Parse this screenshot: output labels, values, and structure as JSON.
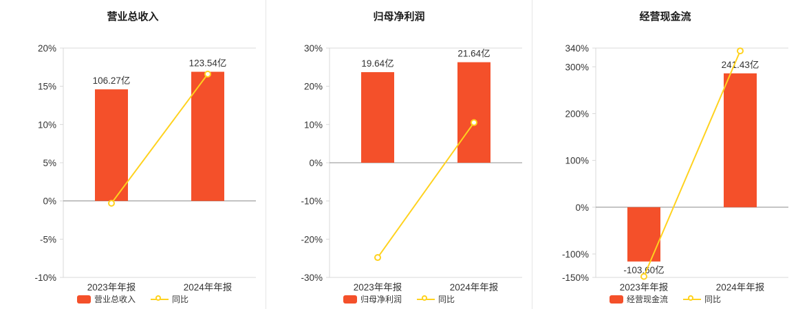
{
  "colors": {
    "bar": "#f4502a",
    "line": "#ffd21e",
    "axis_text": "#333333",
    "zero_line": "#8c8c8c",
    "grid_line": "#d8d8d8",
    "divider": "#e5e5e5",
    "title_text": "#1a1a1a",
    "marker_fill": "#ffffff"
  },
  "chart_data": [
    {
      "type": "bar+line",
      "title": "营业总收入",
      "categories": [
        "2023年年报",
        "2024年年报"
      ],
      "ylim": [
        -10,
        20
      ],
      "y_ticks": [
        {
          "value": 20,
          "label": "20%"
        },
        {
          "value": 15,
          "label": "15%"
        },
        {
          "value": 10,
          "label": "10%"
        },
        {
          "value": 5,
          "label": "5%"
        },
        {
          "value": 0,
          "label": "0%"
        },
        {
          "value": -5,
          "label": "-5%"
        },
        {
          "value": -10,
          "label": "-10%"
        }
      ],
      "bars": {
        "name": "营业总收入",
        "unit": "亿",
        "values": [
          {
            "amount": 106.27,
            "label": "106.27亿",
            "axis": 14.6
          },
          {
            "amount": 123.54,
            "label": "123.54亿",
            "axis": 16.9
          }
        ]
      },
      "line": {
        "name": "同比",
        "values": [
          -0.3,
          16.6
        ]
      },
      "legend_position": "bottom",
      "grid": false
    },
    {
      "type": "bar+line",
      "title": "归母净利润",
      "categories": [
        "2023年年报",
        "2024年年报"
      ],
      "ylim": [
        -30,
        30
      ],
      "y_ticks": [
        {
          "value": 30,
          "label": "30%"
        },
        {
          "value": 20,
          "label": "20%"
        },
        {
          "value": 10,
          "label": "10%"
        },
        {
          "value": 0,
          "label": "0%"
        },
        {
          "value": -10,
          "label": "-10%"
        },
        {
          "value": -20,
          "label": "-20%"
        },
        {
          "value": -30,
          "label": "-30%"
        }
      ],
      "bars": {
        "name": "归母净利润",
        "unit": "亿",
        "values": [
          {
            "amount": 19.64,
            "label": "19.64亿",
            "axis": 23.7
          },
          {
            "amount": 21.64,
            "label": "21.64亿",
            "axis": 26.3
          }
        ]
      },
      "line": {
        "name": "同比",
        "values": [
          -24.8,
          10.5
        ]
      },
      "legend_position": "bottom",
      "grid": false
    },
    {
      "type": "bar+line",
      "title": "经营现金流",
      "categories": [
        "2023年年报",
        "2024年年报"
      ],
      "ylim": [
        -150,
        340
      ],
      "y_ticks": [
        {
          "value": 340,
          "label": "340%"
        },
        {
          "value": 300,
          "label": "300%"
        },
        {
          "value": 200,
          "label": "200%"
        },
        {
          "value": 100,
          "label": "100%"
        },
        {
          "value": 0,
          "label": "0%"
        },
        {
          "value": -100,
          "label": "-100%"
        },
        {
          "value": -150,
          "label": "-150%"
        }
      ],
      "bars": {
        "name": "经营现金流",
        "unit": "亿",
        "values": [
          {
            "amount": -103.6,
            "label": "-103.60亿",
            "axis": -116
          },
          {
            "amount": 241.43,
            "label": "241.43亿",
            "axis": 286
          }
        ]
      },
      "line": {
        "name": "同比",
        "values": [
          -148,
          334
        ]
      },
      "legend_position": "bottom",
      "grid": false
    }
  ]
}
